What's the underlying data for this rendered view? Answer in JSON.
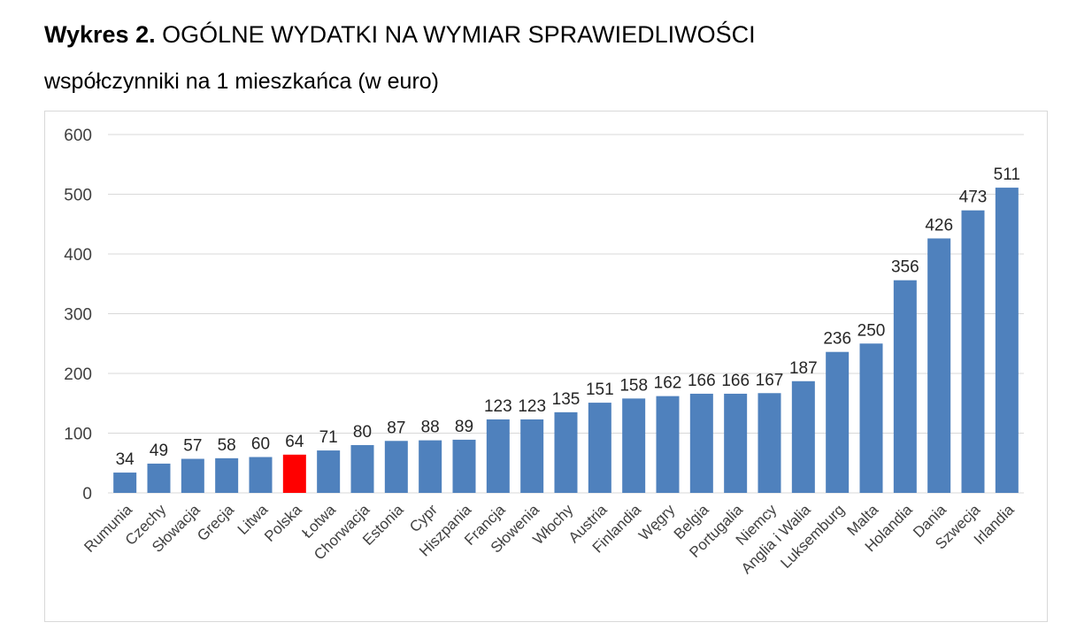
{
  "title": {
    "prefix": "Wykres 2.",
    "main": "OGÓLNE WYDATKI NA WYMIAR SPRAWIEDLIWOŚCI"
  },
  "subtitle": "współczynniki na 1 mieszkańca (w euro)",
  "colors": {
    "bar": "#4f81bd",
    "highlight": "#ff0000",
    "grid": "#d9d9d9",
    "text": "#404040"
  },
  "chart_data": {
    "type": "bar",
    "title": "OGÓLNE WYDATKI NA WYMIAR SPRAWIEDLIWOŚCI",
    "subtitle": "współczynniki na 1 mieszkańca (w euro)",
    "categories": [
      "Rumunia",
      "Czechy",
      "Słowacja",
      "Grecja",
      "Litwa",
      "Polska",
      "Łotwa",
      "Chorwacja",
      "Estonia",
      "Cypr",
      "Hiszpania",
      "Francja",
      "Słowenia",
      "Włochy",
      "Austria",
      "Finlandia",
      "Węgry",
      "Belgia",
      "Portugalia",
      "Niemcy",
      "Anglia i Walia",
      "Luksemburg",
      "Malta",
      "Holandia",
      "Dania",
      "Szwecja",
      "Irlandia"
    ],
    "values": [
      34,
      49,
      57,
      58,
      60,
      64,
      71,
      80,
      87,
      88,
      89,
      123,
      123,
      135,
      151,
      158,
      162,
      166,
      166,
      167,
      187,
      236,
      250,
      356,
      426,
      473,
      511
    ],
    "highlight_category": "Polska",
    "ylim": [
      0,
      600
    ],
    "yticks": [
      0,
      100,
      200,
      300,
      400,
      500,
      600
    ],
    "grid": true,
    "legend": false,
    "data_labels": true
  }
}
